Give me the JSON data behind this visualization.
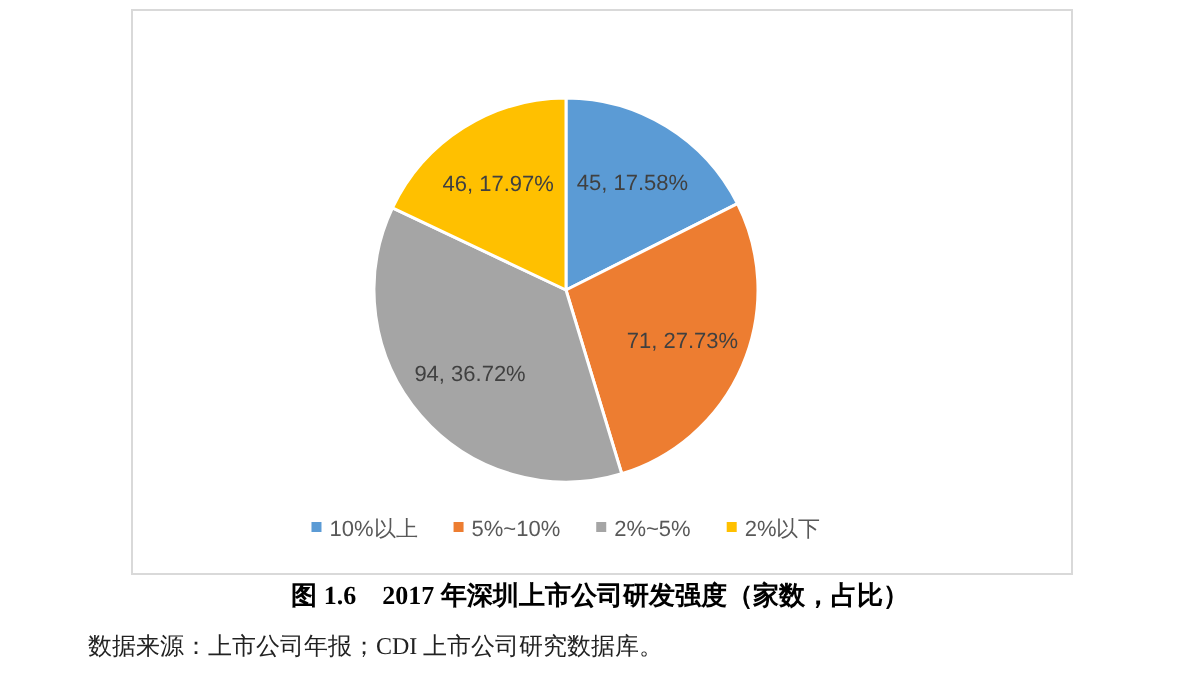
{
  "chart_data": {
    "type": "pie",
    "title": "图 1.6　2017 年深圳上市公司研发强度（家数，占比）",
    "categories": [
      "10%以上",
      "5%~10%",
      "2%~5%",
      "2%以下"
    ],
    "values": [
      45,
      71,
      94,
      46
    ],
    "value_labels": [
      "45, 17.58%",
      "71, 27.73%",
      "94, 36.72%",
      "46, 17.97%"
    ],
    "colors": [
      "#5b9bd5",
      "#ed7d31",
      "#a5a5a5",
      "#ffc000"
    ],
    "legend": "bottom",
    "annotations": [
      "数据来源：上市公司年报；CDI 上市公司研究数据库。"
    ]
  }
}
